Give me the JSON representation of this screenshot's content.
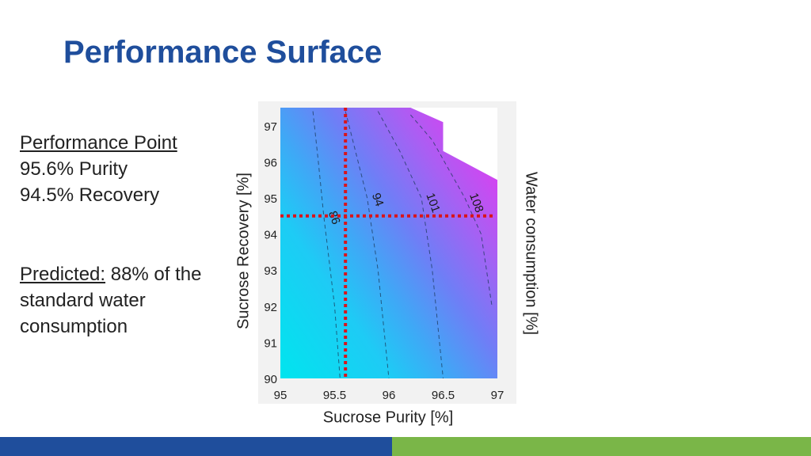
{
  "slide": {
    "title": "Performance Surface",
    "performance": {
      "heading": "Performance Point",
      "purity_line": "95.6% Purity",
      "recovery_line": "94.5% Recovery"
    },
    "prediction": {
      "label": "Predicted:",
      "text_line1": " 88% of the",
      "text_line2": "standard water",
      "text_line3": "consumption"
    },
    "colors": {
      "title": "#1f4e9c",
      "bottom_bar_left": "#1f4e9c",
      "bottom_bar_right": "#7ab648",
      "marker": "#d9141b"
    }
  },
  "chart_data": {
    "type": "heatmap",
    "xlabel": "Sucrose Purity [%]",
    "ylabel": "Sucrose Recovery [%]",
    "colorbar_label": "Water consumption [%]",
    "xlim": [
      95,
      97
    ],
    "ylim": [
      90,
      97.5
    ],
    "x_ticks": [
      95,
      95.5,
      96,
      96.5,
      97
    ],
    "x_tick_labels": [
      "95",
      "95.5",
      "96",
      "96.5",
      "97"
    ],
    "y_ticks": [
      90,
      91,
      92,
      93,
      94,
      95,
      96,
      97
    ],
    "y_tick_labels": [
      "90",
      "91",
      "92",
      "93",
      "94",
      "95",
      "96",
      "97"
    ],
    "color_scale": [
      "#00e5ee",
      "#1ecbf5",
      "#3fa8f6",
      "#6f7ef6",
      "#a95ff3",
      "#e23bf0"
    ],
    "contours": [
      {
        "level": 86,
        "label": "86",
        "points": [
          [
            95.3,
            97.4
          ],
          [
            95.35,
            96.0
          ],
          [
            95.4,
            94.5
          ],
          [
            95.5,
            92.0
          ],
          [
            95.55,
            90
          ]
        ]
      },
      {
        "level": 94,
        "label": "94",
        "points": [
          [
            95.6,
            97.4
          ],
          [
            95.7,
            96.2
          ],
          [
            95.8,
            95.0
          ],
          [
            95.9,
            93.0
          ],
          [
            96.0,
            90
          ]
        ]
      },
      {
        "level": 101,
        "label": "101",
        "points": [
          [
            95.9,
            97.4
          ],
          [
            96.1,
            96.3
          ],
          [
            96.3,
            95.0
          ],
          [
            96.4,
            93.0
          ],
          [
            96.5,
            90
          ]
        ]
      },
      {
        "level": 108,
        "label": "108",
        "points": [
          [
            96.2,
            97.3
          ],
          [
            96.4,
            96.6
          ],
          [
            96.7,
            95.0
          ],
          [
            96.85,
            94.0
          ],
          [
            96.95,
            92.0
          ]
        ]
      }
    ],
    "boundary": [
      [
        95,
        90
      ],
      [
        95,
        97.5
      ],
      [
        96.2,
        97.5
      ],
      [
        96.5,
        97.1
      ],
      [
        96.5,
        96.3
      ],
      [
        97,
        95.5
      ],
      [
        97,
        90
      ]
    ],
    "marker": {
      "x": 95.6,
      "y": 94.5
    }
  }
}
